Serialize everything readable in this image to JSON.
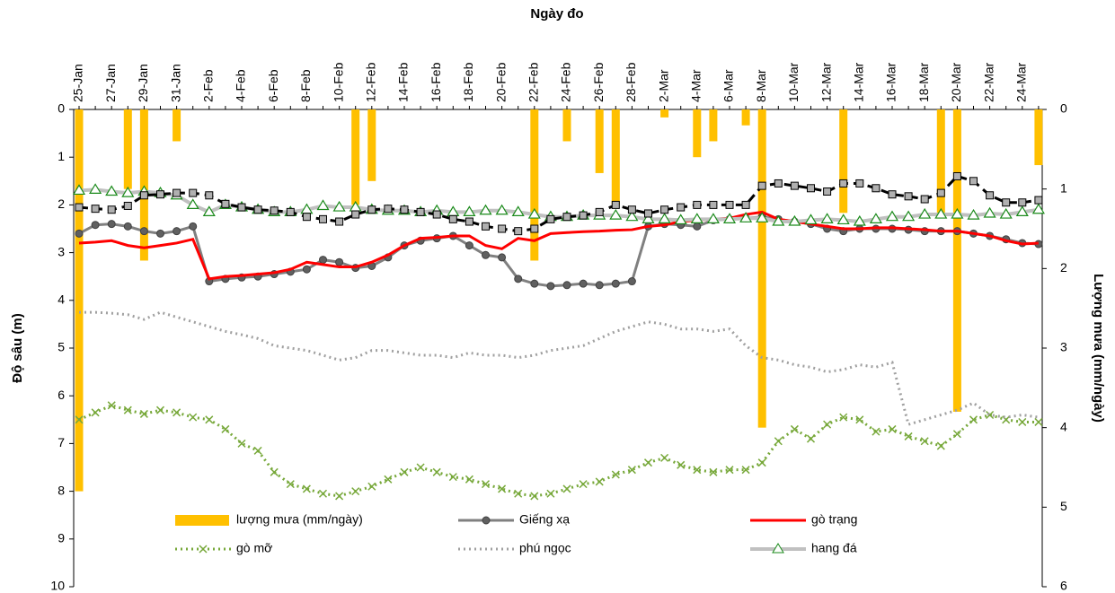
{
  "chart_data": {
    "type": "line",
    "title": "Ngày đo",
    "y_label": "Độ sâu (m)",
    "y2_label": "Lượng mưa (mm/ngày)",
    "categories": [
      "25-Jan",
      null,
      "27-Jan",
      null,
      "29-Jan",
      null,
      "31-Jan",
      null,
      "2-Feb",
      null,
      "4-Feb",
      null,
      "6-Feb",
      null,
      "8-Feb",
      null,
      "10-Feb",
      null,
      "12-Feb",
      null,
      "14-Feb",
      null,
      "16-Feb",
      null,
      "18-Feb",
      null,
      "20-Feb",
      null,
      "22-Feb",
      null,
      "24-Feb",
      null,
      "26-Feb",
      null,
      "28-Feb",
      null,
      "2-Mar",
      null,
      "4-Mar",
      null,
      "6-Mar",
      null,
      "8-Mar",
      null,
      "10-Mar",
      null,
      "12-Mar",
      null,
      "14-Mar",
      null,
      "16-Mar",
      null,
      "18-Mar",
      null,
      "20-Mar",
      null,
      "22-Mar",
      null,
      "24-Mar",
      null
    ],
    "ylim": [
      0,
      10
    ],
    "yticks": [
      0,
      1,
      2,
      3,
      4,
      5,
      6,
      7,
      8,
      9,
      10
    ],
    "y2lim": [
      0,
      6
    ],
    "y2ticks": [
      0,
      1,
      2,
      3,
      4,
      5,
      6
    ],
    "y_inverted": true,
    "y2_inverted": true,
    "series": [
      {
        "name": "lượng mưa (mm/ngày)",
        "type": "bar",
        "axis": "y2",
        "color": "#ffc000",
        "values": [
          4.8,
          0,
          0,
          1.0,
          1.9,
          0,
          0.4,
          0,
          0,
          0,
          0,
          0,
          0,
          0,
          0,
          0,
          0,
          1.2,
          0.9,
          0,
          0,
          0,
          0,
          0,
          0,
          0,
          0,
          0,
          1.9,
          0,
          0.4,
          0,
          0.8,
          1.2,
          0,
          0,
          0.1,
          0,
          0.6,
          0.4,
          0,
          0.2,
          4.0,
          0,
          0,
          0,
          0,
          1.3,
          0,
          0,
          0,
          0,
          0,
          1.3,
          3.8,
          0,
          0,
          0,
          0,
          0.7
        ]
      },
      {
        "name": "Giếng xạ",
        "color": "#808080",
        "marker": "circle",
        "dash": "solid",
        "values": [
          2.6,
          2.42,
          2.4,
          2.45,
          2.55,
          2.6,
          2.55,
          2.45,
          3.6,
          3.55,
          3.52,
          3.5,
          3.45,
          3.4,
          3.35,
          3.15,
          3.2,
          3.32,
          3.28,
          3.1,
          2.85,
          2.75,
          2.7,
          2.65,
          2.85,
          3.05,
          3.1,
          3.55,
          3.65,
          3.7,
          3.68,
          3.65,
          3.68,
          3.65,
          3.6,
          2.45,
          2.4,
          2.42,
          2.45,
          2.32,
          2.3,
          2.28,
          2.25,
          2.3,
          2.35,
          2.4,
          2.5,
          2.55,
          2.5,
          2.5,
          2.5,
          2.52,
          2.55,
          2.55,
          2.55,
          2.6,
          2.65,
          2.72,
          2.8,
          2.82
        ]
      },
      {
        "name": "gò trạng",
        "color": "#ff0000",
        "marker": "none",
        "dash": "solid",
        "values": [
          2.8,
          2.78,
          2.75,
          2.85,
          2.9,
          2.85,
          2.8,
          2.72,
          3.55,
          3.5,
          3.48,
          3.45,
          3.42,
          3.35,
          3.2,
          3.25,
          3.3,
          3.3,
          3.2,
          3.05,
          2.85,
          2.7,
          2.68,
          2.65,
          2.65,
          2.85,
          2.92,
          2.7,
          2.75,
          2.6,
          2.58,
          2.56,
          2.55,
          2.53,
          2.52,
          2.45,
          2.42,
          2.35,
          2.32,
          2.3,
          2.28,
          2.2,
          2.15,
          2.3,
          2.35,
          2.4,
          2.45,
          2.5,
          2.5,
          2.48,
          2.48,
          2.5,
          2.52,
          2.55,
          2.55,
          2.6,
          2.65,
          2.75,
          2.82,
          2.8
        ]
      },
      {
        "name": "gò mỡ",
        "color": "#77a83a",
        "marker": "x",
        "dash": "dotted",
        "values": [
          6.5,
          6.35,
          6.2,
          6.3,
          6.38,
          6.3,
          6.35,
          6.45,
          6.5,
          6.7,
          7.0,
          7.15,
          7.6,
          7.85,
          7.95,
          8.05,
          8.1,
          8.0,
          7.9,
          7.75,
          7.6,
          7.5,
          7.6,
          7.7,
          7.75,
          7.85,
          7.95,
          8.05,
          8.1,
          8.05,
          7.95,
          7.85,
          7.8,
          7.65,
          7.55,
          7.4,
          7.3,
          7.45,
          7.55,
          7.6,
          7.55,
          7.55,
          7.4,
          6.95,
          6.7,
          6.9,
          6.6,
          6.45,
          6.5,
          6.75,
          6.7,
          6.85,
          6.95,
          7.05,
          6.8,
          6.5,
          6.4,
          6.5,
          6.55,
          6.55
        ]
      },
      {
        "name": "phú ngọc",
        "color": "#a0a0a0",
        "marker": "none",
        "dash": "dotted",
        "values": [
          4.25,
          4.25,
          4.27,
          4.3,
          4.4,
          4.25,
          4.35,
          4.45,
          4.55,
          4.65,
          4.72,
          4.8,
          4.95,
          5.0,
          5.05,
          5.15,
          5.25,
          5.2,
          5.05,
          5.05,
          5.1,
          5.15,
          5.15,
          5.2,
          5.1,
          5.15,
          5.15,
          5.2,
          5.15,
          5.05,
          5.0,
          4.95,
          4.8,
          4.65,
          4.55,
          4.45,
          4.5,
          4.6,
          4.6,
          4.65,
          4.6,
          4.95,
          5.2,
          5.25,
          5.35,
          5.4,
          5.5,
          5.45,
          5.35,
          5.4,
          5.3,
          6.6,
          6.5,
          6.4,
          6.3,
          6.15,
          6.4,
          6.45,
          6.4,
          6.45
        ]
      },
      {
        "name": "hang đá",
        "color": "#c0c0c0",
        "marker": "triangle",
        "marker_color": "#1a8a1a",
        "dash": "solid",
        "values": [
          1.7,
          1.68,
          1.72,
          1.75,
          1.72,
          1.75,
          1.8,
          2.0,
          2.15,
          2.0,
          2.05,
          2.1,
          2.15,
          2.15,
          2.1,
          2.02,
          2.05,
          2.05,
          2.1,
          2.12,
          2.12,
          2.15,
          2.12,
          2.15,
          2.15,
          2.12,
          2.12,
          2.15,
          2.2,
          2.25,
          2.25,
          2.22,
          2.22,
          2.22,
          2.25,
          2.3,
          2.3,
          2.32,
          2.3,
          2.3,
          2.3,
          2.28,
          2.28,
          2.35,
          2.35,
          2.32,
          2.3,
          2.32,
          2.35,
          2.3,
          2.25,
          2.25,
          2.2,
          2.2,
          2.2,
          2.22,
          2.18,
          2.2,
          2.15,
          2.1
        ]
      },
      {
        "color": "#000000",
        "marker": "square",
        "dash": "dashed",
        "values": [
          2.05,
          2.08,
          2.1,
          2.02,
          1.8,
          1.78,
          1.75,
          1.75,
          1.8,
          1.98,
          2.05,
          2.1,
          2.12,
          2.15,
          2.25,
          2.3,
          2.35,
          2.2,
          2.1,
          2.08,
          2.1,
          2.15,
          2.2,
          2.3,
          2.35,
          2.45,
          2.5,
          2.55,
          2.5,
          2.3,
          2.25,
          2.22,
          2.15,
          2.0,
          2.1,
          2.18,
          2.1,
          2.05,
          2.0,
          2.0,
          2.0,
          2.0,
          1.6,
          1.55,
          1.6,
          1.65,
          1.72,
          1.55,
          1.55,
          1.65,
          1.78,
          1.82,
          1.88,
          1.75,
          1.4,
          1.5,
          1.8,
          1.95,
          1.95,
          1.9
        ]
      }
    ]
  }
}
